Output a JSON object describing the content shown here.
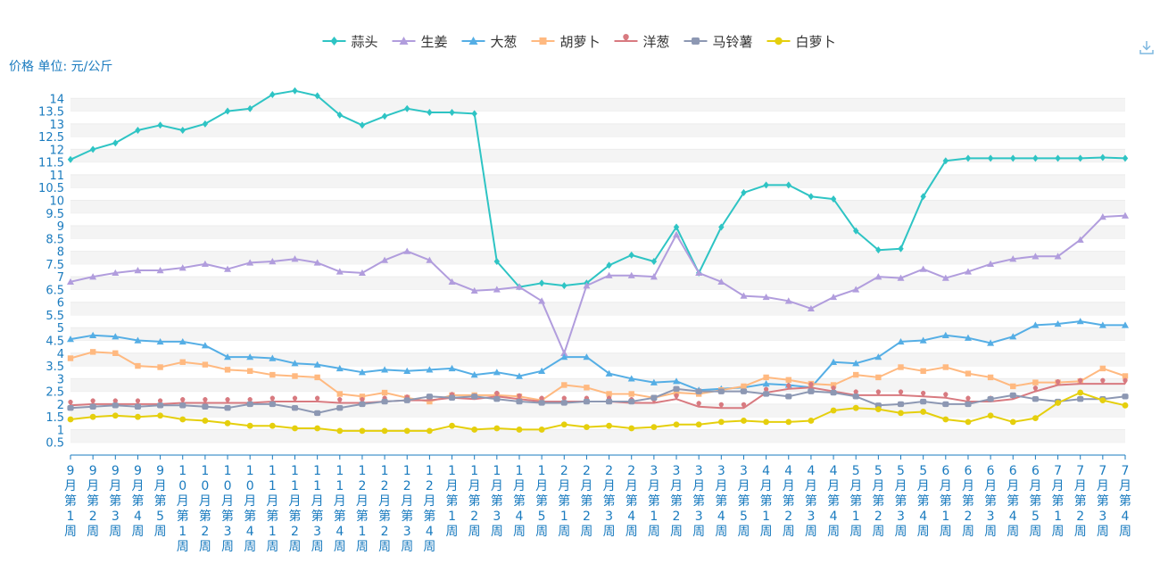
{
  "chart_data": {
    "type": "line",
    "unit_label": "价格 单位: 元/公斤",
    "ylim": [
      0,
      14.5
    ],
    "yticks": [
      "0.5",
      "1",
      "1.5",
      "2",
      "2.5",
      "3",
      "3.5",
      "4",
      "4.5",
      "5",
      "5.5",
      "6",
      "6.5",
      "7",
      "7.5",
      "8",
      "8.5",
      "9",
      "9.5",
      "10",
      "10.5",
      "11",
      "11.5",
      "12",
      "12.5",
      "13",
      "13.5",
      "14"
    ],
    "categories": [
      "9月第1周",
      "9月第2周",
      "9月第3周",
      "9月第4周",
      "9月第5周",
      "10月第1周",
      "10月第2周",
      "10月第3周",
      "10月第4周",
      "11月第1周",
      "11月第2周",
      "11月第3周",
      "11月第4周",
      "12月第1周",
      "12月第2周",
      "12月第3周",
      "12月第4周",
      "1月第1周",
      "1月第2周",
      "1月第3周",
      "1月第4周",
      "1月第5周",
      "2月第1周",
      "2月第2周",
      "2月第3周",
      "2月第4周",
      "3月第1周",
      "3月第2周",
      "3月第3周",
      "3月第4周",
      "3月第5周",
      "4月第1周",
      "4月第2周",
      "4月第3周",
      "4月第4周",
      "5月第1周",
      "5月第2周",
      "5月第3周",
      "5月第4周",
      "6月第1周",
      "6月第2周",
      "6月第3周",
      "6月第4周",
      "6月第5周",
      "7月第1周",
      "7月第2周",
      "7月第3周",
      "7月第4周"
    ],
    "legend_position": "top-center",
    "series": [
      {
        "name": "蒜头",
        "color": "#2ec4c4",
        "symbol": "diamond",
        "values": [
          11.6,
          12.0,
          12.25,
          12.75,
          12.95,
          12.75,
          13.0,
          13.5,
          13.6,
          14.15,
          14.3,
          14.1,
          13.35,
          12.95,
          13.3,
          13.6,
          13.45,
          13.45,
          13.4,
          7.6,
          6.6,
          6.75,
          6.65,
          6.75,
          7.45,
          7.85,
          7.6,
          8.95,
          7.15,
          8.95,
          10.3,
          10.6,
          10.6,
          10.15,
          10.05,
          8.8,
          8.05,
          8.1,
          10.15,
          11.55,
          11.65,
          11.65,
          11.65,
          11.65,
          11.65,
          11.65,
          11.68,
          11.65
        ]
      },
      {
        "name": "生姜",
        "color": "#b19ddd",
        "symbol": "triangle",
        "values": [
          6.8,
          7.0,
          7.15,
          7.25,
          7.25,
          7.35,
          7.5,
          7.3,
          7.55,
          7.6,
          7.7,
          7.55,
          7.2,
          7.15,
          7.65,
          8.0,
          7.65,
          6.8,
          6.45,
          6.5,
          6.6,
          6.05,
          4.0,
          6.65,
          7.05,
          7.05,
          7.0,
          8.65,
          7.15,
          6.8,
          6.25,
          6.2,
          6.05,
          5.75,
          6.2,
          6.5,
          7.0,
          6.95,
          7.3,
          6.95,
          7.2,
          7.5,
          7.7,
          7.8,
          7.8,
          8.45,
          9.35,
          9.4
        ]
      },
      {
        "name": "大葱",
        "color": "#55aee5",
        "symbol": "triangle",
        "values": [
          4.55,
          4.7,
          4.65,
          4.5,
          4.45,
          4.45,
          4.3,
          3.85,
          3.85,
          3.8,
          3.6,
          3.55,
          3.4,
          3.25,
          3.35,
          3.3,
          3.35,
          3.4,
          3.15,
          3.25,
          3.1,
          3.3,
          3.85,
          3.85,
          3.2,
          3.0,
          2.85,
          2.9,
          2.55,
          2.6,
          2.65,
          2.8,
          2.75,
          2.65,
          3.65,
          3.6,
          3.85,
          4.45,
          4.5,
          4.7,
          4.6,
          4.4,
          4.65,
          5.1,
          5.15,
          5.25,
          5.1,
          5.1
        ]
      },
      {
        "name": "胡萝卜",
        "color": "#ffb980",
        "symbol": "square",
        "values": [
          3.8,
          4.05,
          4.0,
          3.5,
          3.45,
          3.65,
          3.55,
          3.35,
          3.3,
          3.15,
          3.1,
          3.05,
          2.4,
          2.3,
          2.45,
          2.25,
          2.1,
          2.35,
          2.35,
          2.35,
          2.3,
          2.15,
          2.75,
          2.65,
          2.4,
          2.4,
          2.25,
          2.45,
          2.4,
          2.55,
          2.7,
          3.05,
          2.95,
          2.8,
          2.75,
          3.15,
          3.05,
          3.45,
          3.3,
          3.45,
          3.2,
          3.05,
          2.7,
          2.85,
          2.85,
          2.9,
          3.4,
          3.1
        ]
      },
      {
        "name": "洋葱",
        "color": "#d87a80",
        "symbol": "pin",
        "values": [
          1.95,
          2.0,
          2.0,
          2.0,
          2.0,
          2.05,
          2.05,
          2.05,
          2.05,
          2.1,
          2.1,
          2.1,
          2.05,
          2.05,
          2.1,
          2.15,
          2.15,
          2.25,
          2.2,
          2.3,
          2.2,
          2.1,
          2.1,
          2.1,
          2.1,
          2.05,
          2.05,
          2.2,
          1.9,
          1.85,
          1.85,
          2.45,
          2.6,
          2.65,
          2.5,
          2.35,
          2.35,
          2.35,
          2.3,
          2.25,
          2.1,
          2.1,
          2.2,
          2.5,
          2.75,
          2.8,
          2.8,
          2.8
        ]
      },
      {
        "name": "马铃薯",
        "color": "#8d98b3",
        "symbol": "roundRect",
        "values": [
          1.85,
          1.9,
          1.95,
          1.9,
          1.95,
          1.95,
          1.9,
          1.85,
          2.0,
          2.0,
          1.85,
          1.65,
          1.85,
          2.0,
          2.1,
          2.15,
          2.3,
          2.25,
          2.3,
          2.2,
          2.1,
          2.05,
          2.05,
          2.1,
          2.1,
          2.1,
          2.25,
          2.6,
          2.5,
          2.5,
          2.5,
          2.4,
          2.3,
          2.5,
          2.45,
          2.3,
          1.95,
          2.0,
          2.1,
          2.0,
          2.0,
          2.2,
          2.35,
          2.2,
          2.1,
          2.2,
          2.2,
          2.3
        ]
      },
      {
        "name": "白萝卜",
        "color": "#e5cf0d",
        "symbol": "circle",
        "values": [
          1.4,
          1.5,
          1.55,
          1.5,
          1.55,
          1.4,
          1.35,
          1.25,
          1.15,
          1.15,
          1.05,
          1.05,
          0.95,
          0.95,
          0.95,
          0.95,
          0.95,
          1.15,
          1.0,
          1.05,
          1.0,
          1.0,
          1.2,
          1.1,
          1.15,
          1.05,
          1.1,
          1.2,
          1.2,
          1.3,
          1.35,
          1.3,
          1.3,
          1.35,
          1.75,
          1.85,
          1.8,
          1.65,
          1.7,
          1.4,
          1.3,
          1.55,
          1.3,
          1.45,
          2.05,
          2.45,
          2.15,
          1.95
        ]
      }
    ]
  }
}
